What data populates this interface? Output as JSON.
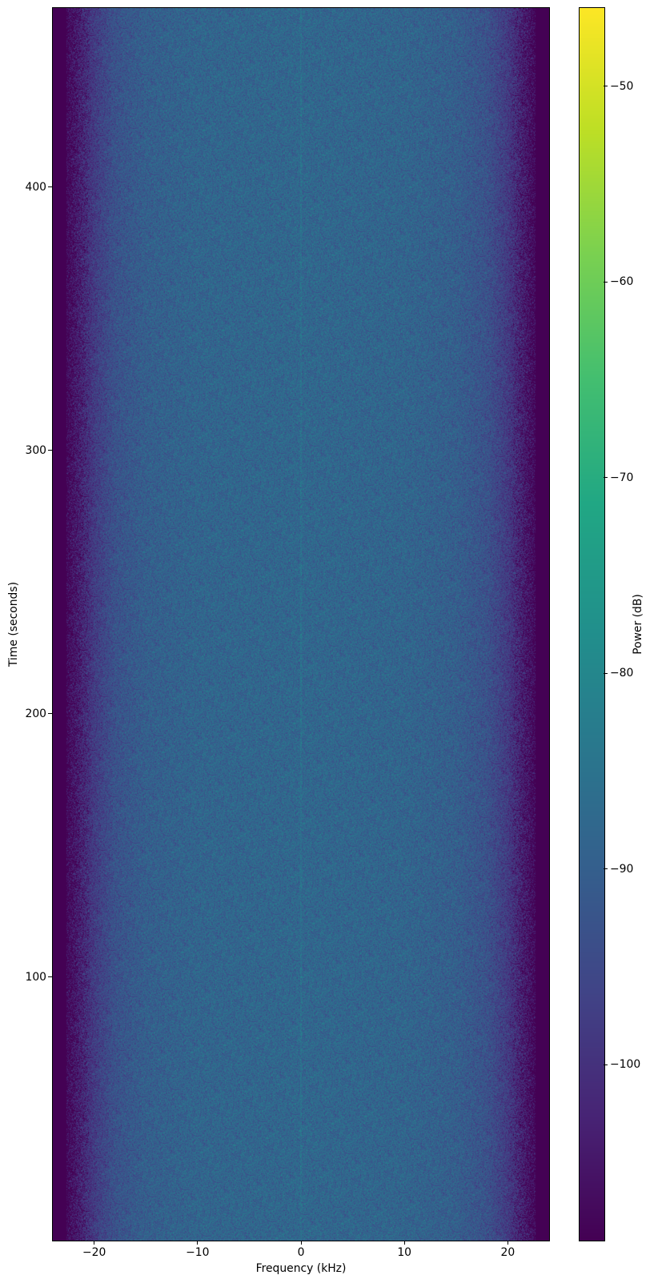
{
  "chart_data": {
    "type": "heatmap",
    "title": "",
    "xlabel": "Frequency (kHz)",
    "ylabel": "Time (seconds)",
    "colorbar_label": "Power (dB)",
    "colormap": "viridis",
    "xlim": [
      -24,
      24
    ],
    "ylim": [
      0,
      468
    ],
    "clim": [
      -109,
      -46
    ],
    "xticks": [
      -20,
      -10,
      0,
      10,
      20
    ],
    "xtick_labels": [
      "−20",
      "−10",
      "0",
      "10",
      "20"
    ],
    "yticks": [
      100,
      200,
      300,
      400
    ],
    "ytick_labels": [
      "100",
      "200",
      "300",
      "400"
    ],
    "cbar_ticks": [
      -50,
      -60,
      -70,
      -80,
      -90,
      -100
    ],
    "cbar_tick_labels": [
      "−50",
      "−60",
      "−70",
      "−80",
      "−90",
      "−100"
    ],
    "grid": false,
    "mean_power_profile": {
      "frequency_khz": [
        -24,
        -22.5,
        -21,
        -20,
        -18,
        -15,
        -10,
        0,
        10,
        15,
        18,
        20,
        21,
        22.5,
        24
      ],
      "power_db": [
        -109,
        -108,
        -102,
        -98,
        -93,
        -90,
        -88.5,
        -88,
        -88.5,
        -90,
        -93,
        -98,
        -102,
        -108,
        -109
      ]
    },
    "features": "faint narrow brighter line at 0 kHz across all times; stationary noise otherwise"
  }
}
